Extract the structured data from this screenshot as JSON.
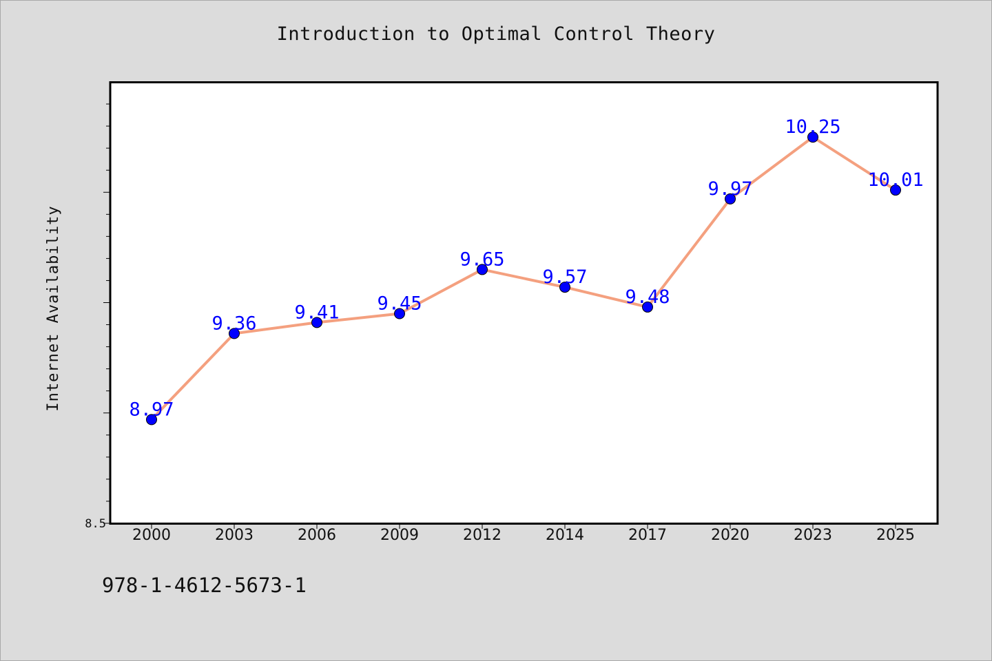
{
  "footer": {
    "isbn": "978-1-4612-5673-1"
  },
  "chart_data": {
    "type": "line",
    "title": "Introduction to Optimal Control Theory",
    "xlabel": "",
    "ylabel": "Internet Availability",
    "categories": [
      "2000",
      "2003",
      "2006",
      "2009",
      "2012",
      "2014",
      "2017",
      "2020",
      "2023",
      "2025"
    ],
    "series": [
      {
        "values": [
          8.97,
          9.36,
          9.41,
          9.45,
          9.65,
          9.57,
          9.48,
          9.97,
          10.25,
          10.01
        ],
        "data_labels": [
          "8.97",
          "9.36",
          "9.41",
          "9.45",
          "9.65",
          "9.57",
          "9.48",
          "9.97",
          "10.25",
          "10.01"
        ],
        "line_color": "#f4a07f",
        "marker_color": "#0000ff"
      }
    ],
    "ylim": [
      8.5,
      10.5
    ],
    "y_tick_labels": [
      "8.5"
    ],
    "grid": false,
    "legend": "none"
  }
}
